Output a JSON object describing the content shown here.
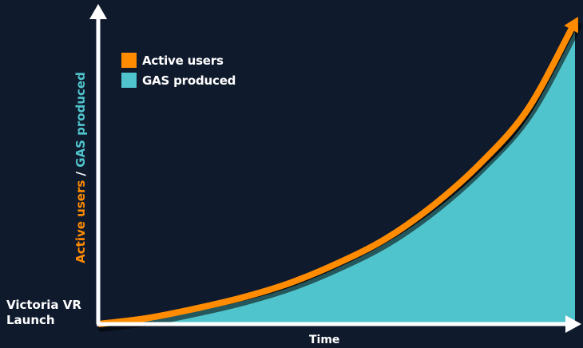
{
  "chart_data": {
    "type": "area",
    "xlabel": "Time",
    "ylabel_parts": [
      "Active users",
      " / ",
      "GAS produced"
    ],
    "x_annotation_lines": [
      "Victoria VR",
      "Launch"
    ],
    "xlim": [
      0,
      100
    ],
    "ylim": [
      0,
      100
    ],
    "grid": false,
    "legend_position": "top-left",
    "series": [
      {
        "name": "Active users",
        "color": "#ff8c00",
        "x": [
          0,
          10,
          20,
          30,
          40,
          50,
          60,
          70,
          80,
          90,
          100
        ],
        "y": [
          0,
          1.9,
          5,
          8.7,
          13.5,
          20,
          28,
          39,
          53,
          71,
          100
        ]
      },
      {
        "name": "GAS produced",
        "color": "#50c4cc",
        "x": [
          0,
          10,
          20,
          30,
          40,
          50,
          60,
          70,
          80,
          90,
          100
        ],
        "y": [
          0,
          1.4,
          4,
          7.5,
          12,
          18.5,
          26.5,
          37,
          50.5,
          68,
          97
        ]
      }
    ]
  },
  "colors": {
    "background": "#101a2d",
    "axis": "#ffffff",
    "shadow": "#000000"
  }
}
